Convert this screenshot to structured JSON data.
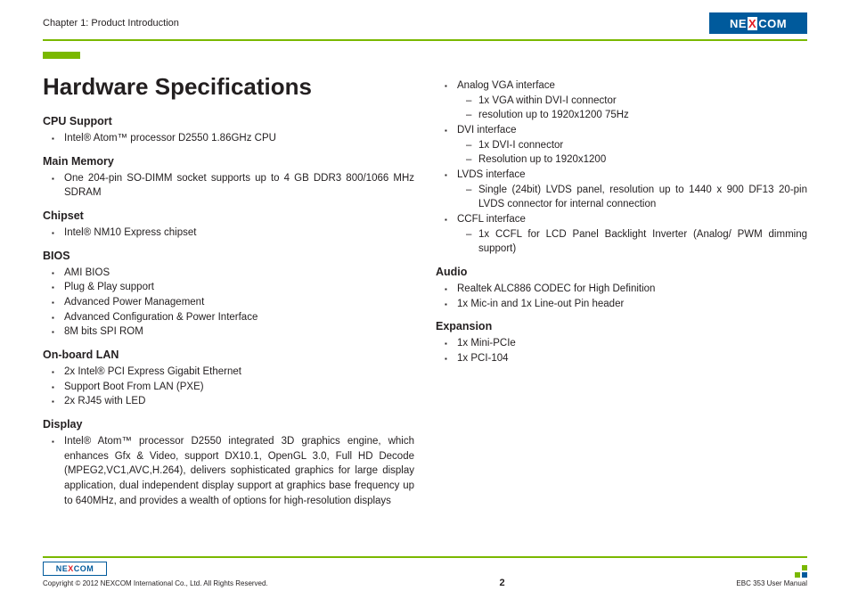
{
  "header": {
    "chapter": "Chapter 1: Product Introduction",
    "logo_text_pre": "NE",
    "logo_text_x": "X",
    "logo_text_post": "COM"
  },
  "title": "Hardware Specifications",
  "sections_left": [
    {
      "heading": "CPU Support",
      "items": [
        {
          "type": "b",
          "text": "Intel® Atom™ processor D2550 1.86GHz CPU"
        }
      ]
    },
    {
      "heading": "Main Memory",
      "items": [
        {
          "type": "b",
          "text": "One 204-pin SO-DIMM socket supports up to 4 GB DDR3 800/1066 MHz SDRAM"
        }
      ]
    },
    {
      "heading": "Chipset",
      "items": [
        {
          "type": "b",
          "text": "Intel® NM10 Express chipset"
        }
      ]
    },
    {
      "heading": "BIOS",
      "items": [
        {
          "type": "b",
          "text": "AMI BIOS"
        },
        {
          "type": "b",
          "text": "Plug & Play support"
        },
        {
          "type": "b",
          "text": "Advanced Power Management"
        },
        {
          "type": "b",
          "text": "Advanced Configuration & Power Interface"
        },
        {
          "type": "b",
          "text": "8M bits SPI ROM"
        }
      ]
    },
    {
      "heading": "On-board LAN",
      "items": [
        {
          "type": "b",
          "text": "2x Intel® PCI Express Gigabit Ethernet"
        },
        {
          "type": "b",
          "text": "Support Boot From LAN (PXE)"
        },
        {
          "type": "b",
          "text": "2x RJ45 with LED"
        }
      ]
    },
    {
      "heading": "Display",
      "items": [
        {
          "type": "b",
          "text": "Intel® Atom™ processor D2550 integrated 3D graphics engine, which enhances Gfx & Video, support DX10.1, OpenGL 3.0, Full HD Decode (MPEG2,VC1,AVC,H.264), delivers sophisticated graphics for large display application, dual independent display support at graphics base frequency up to 640MHz, and provides a wealth of options for high-resolution displays"
        }
      ]
    }
  ],
  "sections_right_top_items": [
    {
      "type": "b",
      "text": "Analog VGA interface",
      "sub": [
        {
          "text": "1x VGA within DVI-I connector"
        },
        {
          "text": "resolution up to 1920x1200 75Hz"
        }
      ]
    },
    {
      "type": "b",
      "text": "DVI interface",
      "sub": [
        {
          "text": "1x DVI-I connector"
        },
        {
          "text": "Resolution up to 1920x1200"
        }
      ]
    },
    {
      "type": "b",
      "text": "LVDS interface",
      "sub": [
        {
          "text": "Single (24bit) LVDS panel, resolution up to 1440 x 900 DF13 20-pin LVDS connector for internal connection"
        }
      ]
    },
    {
      "type": "b",
      "text": "CCFL interface",
      "sub": [
        {
          "text": "1x CCFL for LCD Panel Backlight Inverter (Analog/ PWM dimming support)"
        }
      ]
    }
  ],
  "sections_right": [
    {
      "heading": "Audio",
      "items": [
        {
          "type": "b",
          "text": "Realtek ALC886 CODEC for High Definition"
        },
        {
          "type": "b",
          "text": "1x Mic-in and 1x Line-out Pin header"
        }
      ]
    },
    {
      "heading": "Expansion",
      "items": [
        {
          "type": "b",
          "text": "1x Mini-PCIe"
        },
        {
          "type": "b",
          "text": "1x PCI-104"
        }
      ]
    }
  ],
  "footer": {
    "copyright": "Copyright © 2012 NEXCOM International Co., Ltd. All Rights Reserved.",
    "page": "2",
    "manual": "EBC 353 User Manual"
  }
}
